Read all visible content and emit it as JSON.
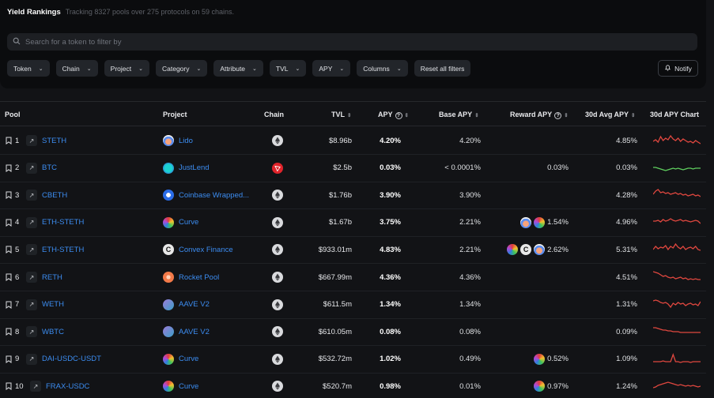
{
  "header": {
    "title": "Yield Rankings",
    "subtitle": "Tracking 8327 pools over 275 protocols on 59 chains."
  },
  "search": {
    "placeholder": "Search for a token to filter by"
  },
  "filters": [
    {
      "label": "Token"
    },
    {
      "label": "Chain"
    },
    {
      "label": "Project"
    },
    {
      "label": "Category"
    },
    {
      "label": "Attribute"
    },
    {
      "label": "TVL"
    },
    {
      "label": "APY"
    },
    {
      "label": "Columns"
    }
  ],
  "reset_label": "Reset all filters",
  "notify_label": "Notify",
  "columns": {
    "pool": "Pool",
    "project": "Project",
    "chain": "Chain",
    "tvl": "TVL",
    "apy": "APY",
    "base_apy": "Base APY",
    "reward_apy": "Reward APY",
    "avg30": "30d Avg APY",
    "chart": "30d APY Chart"
  },
  "colors": {
    "link": "#3c8cf0",
    "spark_red": "#e0473f",
    "spark_green": "#5fcf5f",
    "tron": "#e0242b"
  },
  "rows": [
    {
      "rank": "1",
      "pool": "STETH",
      "project": "Lido",
      "logo": "lido",
      "chain": "ethereum-icon",
      "tvl": "$8.96b",
      "apy": "4.20%",
      "base": "4.20%",
      "reward": "",
      "rewardIcons": [],
      "avg": "4.85%",
      "spark_color": "red",
      "spark": [
        12,
        10,
        13,
        6,
        11,
        8,
        10,
        5,
        9,
        11,
        8,
        12,
        9,
        11,
        13,
        12,
        14,
        11,
        13,
        15
      ]
    },
    {
      "rank": "2",
      "pool": "BTC",
      "project": "JustLend",
      "logo": "justlend",
      "chain": "tron-icon",
      "tvl": "$2.5b",
      "apy": "0.03%",
      "base": "< 0.0001%",
      "reward": "0.03%",
      "rewardIcons": [],
      "avg": "0.03%",
      "spark_color": "green",
      "spark": [
        10,
        10,
        11,
        12,
        13,
        14,
        13,
        12,
        11,
        12,
        11,
        12,
        13,
        12,
        11,
        11,
        12,
        11,
        11,
        11
      ]
    },
    {
      "rank": "3",
      "pool": "CBETH",
      "project": "Coinbase Wrapped...",
      "logo": "coinbase",
      "chain": "ethereum-icon",
      "tvl": "$1.76b",
      "apy": "3.90%",
      "base": "3.90%",
      "reward": "",
      "rewardIcons": [],
      "avg": "4.28%",
      "spark_color": "red",
      "spark": [
        10,
        6,
        4,
        8,
        7,
        9,
        8,
        10,
        9,
        8,
        10,
        9,
        11,
        10,
        12,
        11,
        10,
        12,
        11,
        13
      ]
    },
    {
      "rank": "4",
      "pool": "ETH-STETH",
      "project": "Curve",
      "logo": "curve",
      "chain": "ethereum-icon",
      "tvl": "$1.67b",
      "apy": "3.75%",
      "base": "2.21%",
      "reward": "1.54%",
      "rewardIcons": [
        "lido",
        "curve"
      ],
      "avg": "4.96%",
      "spark_color": "red",
      "spark": [
        9,
        9,
        8,
        10,
        7,
        9,
        8,
        6,
        8,
        9,
        8,
        7,
        9,
        8,
        9,
        10,
        9,
        8,
        9,
        12
      ]
    },
    {
      "rank": "5",
      "pool": "ETH-STETH",
      "project": "Convex Finance",
      "logo": "convex",
      "chain": "ethereum-icon",
      "tvl": "$933.01m",
      "apy": "4.83%",
      "base": "2.21%",
      "reward": "2.62%",
      "rewardIcons": [
        "curve",
        "convex",
        "lido"
      ],
      "avg": "5.31%",
      "spark_color": "red",
      "spark": [
        11,
        7,
        10,
        8,
        9,
        6,
        11,
        7,
        9,
        4,
        8,
        10,
        7,
        11,
        9,
        8,
        10,
        7,
        11,
        12
      ]
    },
    {
      "rank": "6",
      "pool": "RETH",
      "project": "Rocket Pool",
      "logo": "rocket",
      "chain": "ethereum-icon",
      "tvl": "$667.99m",
      "apy": "4.36%",
      "base": "4.36%",
      "reward": "",
      "rewardIcons": [],
      "avg": "4.51%",
      "spark_color": "red",
      "spark": [
        4,
        5,
        6,
        8,
        10,
        9,
        11,
        12,
        11,
        13,
        12,
        11,
        13,
        12,
        14,
        13,
        14,
        13,
        14,
        14
      ]
    },
    {
      "rank": "7",
      "pool": "WETH",
      "project": "AAVE V2",
      "logo": "aave",
      "chain": "ethereum-icon",
      "tvl": "$611.5m",
      "apy": "1.34%",
      "base": "1.34%",
      "reward": "",
      "rewardIcons": [],
      "avg": "1.31%",
      "spark_color": "red",
      "spark": [
        6,
        5,
        6,
        8,
        9,
        8,
        10,
        14,
        9,
        11,
        8,
        10,
        9,
        12,
        10,
        9,
        11,
        10,
        12,
        7
      ]
    },
    {
      "rank": "8",
      "pool": "WBTC",
      "project": "AAVE V2",
      "logo": "aave",
      "chain": "ethereum-icon",
      "tvl": "$610.05m",
      "apy": "0.08%",
      "base": "0.08%",
      "reward": "",
      "rewardIcons": [],
      "avg": "0.09%",
      "spark_color": "red",
      "spark": [
        6,
        6,
        7,
        8,
        9,
        9,
        10,
        10,
        11,
        11,
        11,
        12,
        12,
        12,
        12,
        12,
        12,
        12,
        12,
        12
      ]
    },
    {
      "rank": "9",
      "pool": "DAI-USDC-USDT",
      "project": "Curve",
      "logo": "curve",
      "chain": "ethereum-icon",
      "tvl": "$532.72m",
      "apy": "1.02%",
      "base": "0.49%",
      "reward": "0.52%",
      "rewardIcons": [
        "curve"
      ],
      "avg": "1.09%",
      "spark_color": "red",
      "spark": [
        14,
        14,
        14,
        14,
        13,
        14,
        14,
        14,
        5,
        14,
        14,
        15,
        14,
        14,
        14,
        15,
        14,
        14,
        14,
        14
      ]
    },
    {
      "rank": "10",
      "pool": "FRAX-USDC",
      "project": "Curve",
      "logo": "curve",
      "chain": "ethereum-icon",
      "tvl": "$520.7m",
      "apy": "0.98%",
      "base": "0.01%",
      "reward": "0.97%",
      "rewardIcons": [
        "curve"
      ],
      "avg": "1.24%",
      "spark_color": "red",
      "spark": [
        13,
        12,
        10,
        9,
        8,
        7,
        6,
        7,
        8,
        9,
        10,
        9,
        10,
        11,
        10,
        11,
        10,
        11,
        12,
        11
      ]
    }
  ]
}
